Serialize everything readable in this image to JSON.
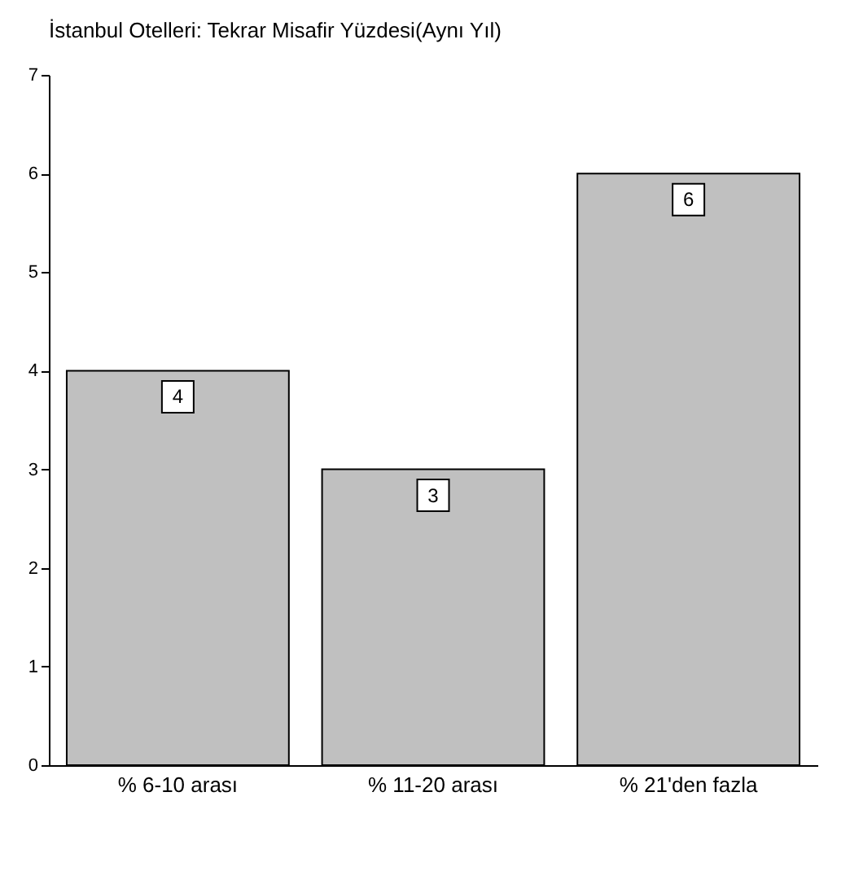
{
  "chart_data": {
    "type": "bar",
    "title": "İstanbul Otelleri: Tekrar Misafir Yüzdesi(Aynı Yıl)",
    "categories": [
      "% 6-10 arası",
      "% 11-20 arası",
      "% 21'den fazla"
    ],
    "values": [
      4,
      3,
      6
    ],
    "color": "#c0c0c0",
    "ylim": [
      0,
      7
    ],
    "yticks": [
      0,
      1,
      2,
      3,
      4,
      5,
      6,
      7
    ],
    "grid": false,
    "data_labels": true
  }
}
